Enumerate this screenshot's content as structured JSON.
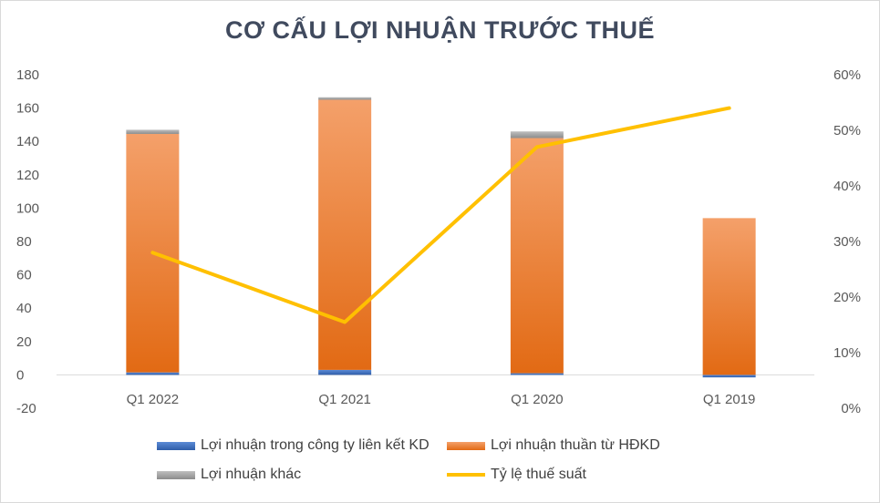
{
  "chart_data": {
    "type": "bar",
    "title": "CƠ CẤU LỢI NHUẬN TRƯỚC THUẾ",
    "categories": [
      "Q1 2022",
      "Q1 2021",
      "Q1 2020",
      "Q1 2019"
    ],
    "stacked": true,
    "series": [
      {
        "name": "Lợi nhuận trong công ty liên kết KD",
        "type": "bar",
        "axis": "left",
        "color": "#4472c4",
        "values": [
          1.5,
          3,
          1,
          -1.5
        ]
      },
      {
        "name": "Lợi nhuận thuần từ HĐKD",
        "type": "bar",
        "axis": "left",
        "color": "#ed7d31",
        "values": [
          143,
          162,
          141,
          94
        ]
      },
      {
        "name": "Lợi nhuận khác",
        "type": "bar",
        "axis": "left",
        "color": "#a5a5a5",
        "values": [
          2.5,
          1.5,
          4,
          0
        ]
      },
      {
        "name": "Tỷ lệ thuế suất",
        "type": "line",
        "axis": "right",
        "color": "#ffc000",
        "values": [
          0.28,
          0.155,
          0.47,
          0.54
        ]
      }
    ],
    "y_left": {
      "min": -20,
      "max": 180,
      "ticks": [
        "180",
        "160",
        "140",
        "120",
        "100",
        "80",
        "60",
        "40",
        "20",
        "0",
        "-20"
      ]
    },
    "y_right": {
      "min": 0,
      "max": 0.6,
      "ticks": [
        "60%",
        "50%",
        "40%",
        "30%",
        "20%",
        "10%",
        "0%"
      ]
    },
    "gridlines": false,
    "legend_position": "bottom"
  }
}
